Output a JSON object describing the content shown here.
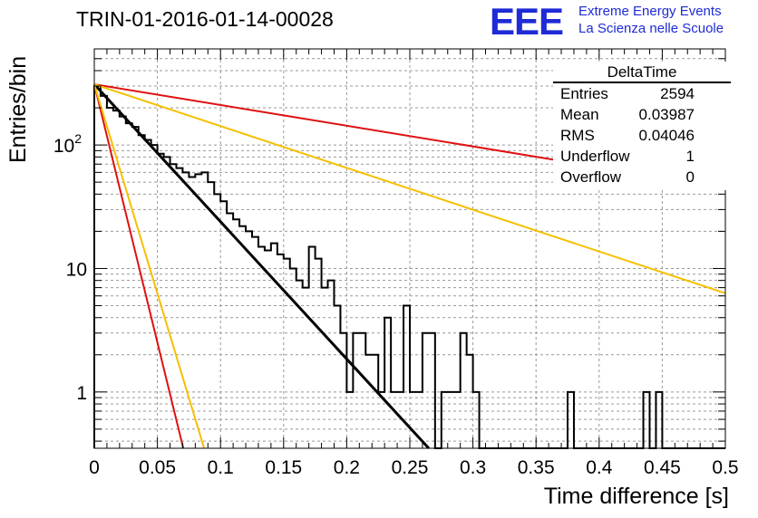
{
  "header": {
    "run_title": "TRIN-01-2016-01-14-00028",
    "logo_text": "EEE",
    "org_line1": "Extreme Energy Events",
    "org_line2": "La Scienza nelle Scuole"
  },
  "stats_box": {
    "title": "DeltaTime",
    "entries_label": "Entries",
    "entries_value": "2594",
    "mean_label": "Mean",
    "mean_value": "0.03987",
    "rms_label": "RMS",
    "rms_value": "0.04046",
    "underflow_label": "Underflow",
    "underflow_value": "1",
    "overflow_label": "Overflow",
    "overflow_value": "0"
  },
  "colors": {
    "histogram": "#000000",
    "fit_black": "#000000",
    "red": "#e01010",
    "yellow": "#f5c000",
    "logo": "#1f2bd6"
  },
  "chart_data": {
    "type": "line",
    "xlabel": "Time difference [s]",
    "ylabel": "Entries/bin",
    "xlim": [
      0,
      0.5
    ],
    "ylim": [
      0.35,
      600
    ],
    "yscale": "log",
    "grid": true,
    "x_ticks": [
      "0",
      "0.05",
      "0.1",
      "0.15",
      "0.2",
      "0.25",
      "0.3",
      "0.35",
      "0.4",
      "0.45",
      "0.5"
    ],
    "y_ticks": [
      {
        "value": 1,
        "label": "1"
      },
      {
        "value": 10,
        "label": "10"
      },
      {
        "value": 100,
        "label": "10",
        "sup": "2"
      }
    ],
    "histogram": {
      "bin_width": 0.005,
      "bin_start": 0,
      "values": [
        300,
        250,
        200,
        190,
        170,
        150,
        140,
        120,
        110,
        100,
        85,
        80,
        70,
        65,
        60,
        55,
        58,
        60,
        50,
        40,
        35,
        28,
        25,
        22,
        20,
        18,
        15,
        14,
        16,
        13,
        12,
        10,
        8,
        7,
        15,
        12,
        7,
        8,
        5,
        3,
        1,
        3,
        3,
        2,
        2,
        1,
        4,
        1,
        1,
        5,
        1,
        1,
        3,
        3,
        0.001,
        1,
        1,
        1,
        3,
        2,
        1,
        0.001,
        0.001,
        0.001,
        0.001,
        0.001,
        0.001,
        0.001,
        0.001,
        0.001,
        0.001,
        0.001,
        0.001,
        0.001,
        0.001,
        1,
        0.001,
        0.001,
        0.001,
        0.001,
        0.001,
        0.001,
        0.001,
        0.001,
        0.001,
        0.001,
        0.001,
        1,
        0.001,
        1,
        0.001,
        0.001,
        0.001,
        0.001,
        0.001,
        0.001,
        0.001,
        0.001,
        0.001,
        0.001
      ]
    },
    "series": [
      {
        "color": "#000000",
        "points": [
          [
            0,
            310
          ],
          [
            0.265,
            0.35
          ]
        ]
      },
      {
        "color": "#e01010",
        "points": [
          [
            0,
            310
          ],
          [
            0.0705,
            0.35
          ]
        ]
      },
      {
        "color": "#f5c000",
        "points": [
          [
            0,
            310
          ],
          [
            0.087,
            0.35
          ]
        ]
      },
      {
        "color": "#e01010",
        "points": [
          [
            0,
            310
          ],
          [
            0.5,
            45
          ]
        ]
      },
      {
        "color": "#f5c000",
        "points": [
          [
            0,
            310
          ],
          [
            0.5,
            6.3
          ]
        ]
      }
    ]
  }
}
